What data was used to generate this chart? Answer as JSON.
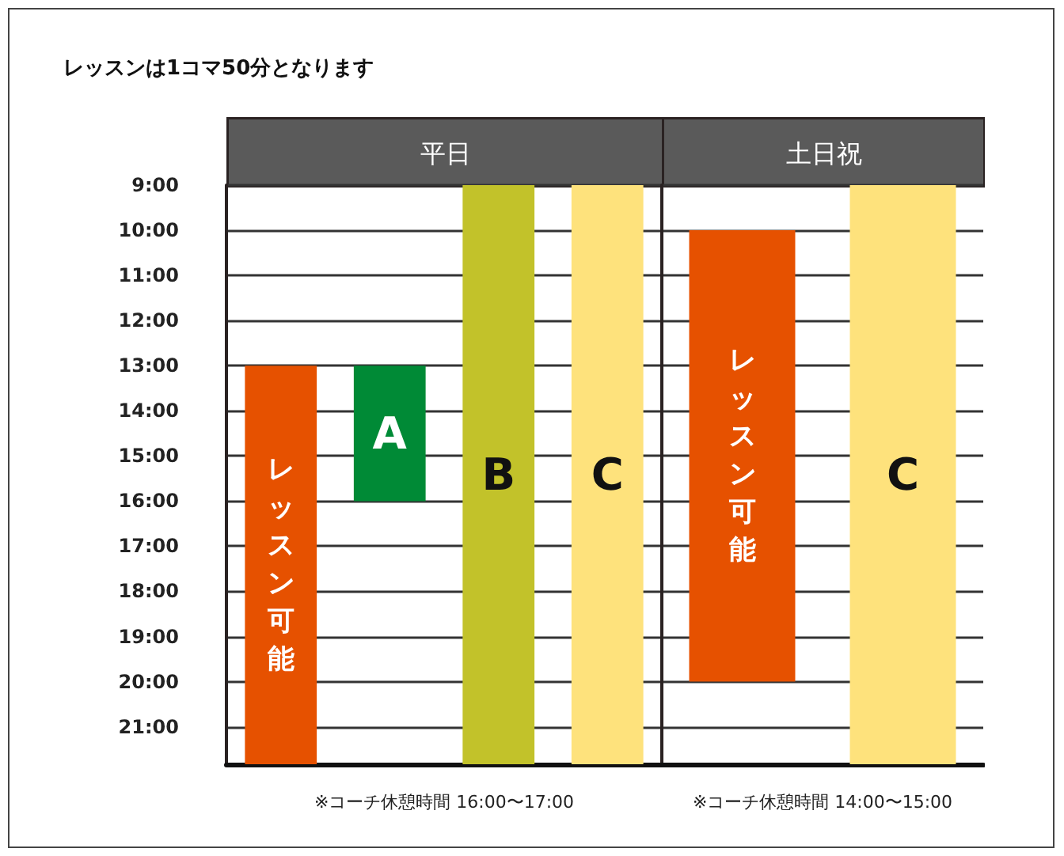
{
  "chart_data": [
    {
      "type": "bar",
      "title": "平日",
      "categories": [
        "レッスン可能",
        "A",
        "B",
        "C"
      ],
      "values": [
        8.83,
        3,
        12.83,
        12.83
      ],
      "base": [
        13,
        13,
        9,
        9
      ],
      "colors": [
        "#e65100",
        "#008a36",
        "#c2c22a",
        "#fee27c"
      ],
      "ylim": [
        21.83,
        9
      ],
      "yticks": [
        {
          "value": 9,
          "label": "9:00"
        },
        {
          "value": 10,
          "label": "10:00"
        },
        {
          "value": 11,
          "label": "11:00"
        },
        {
          "value": 12,
          "label": "12:00"
        },
        {
          "value": 13,
          "label": "13:00"
        },
        {
          "value": 14,
          "label": "14:00"
        },
        {
          "value": 15,
          "label": "15:00"
        },
        {
          "value": 16,
          "label": "16:00"
        },
        {
          "value": 17,
          "label": "17:00"
        },
        {
          "value": 18,
          "label": "18:00"
        },
        {
          "value": 19,
          "label": "19:00"
        },
        {
          "value": 20,
          "label": "20:00"
        },
        {
          "value": 21,
          "label": "21:00"
        }
      ],
      "grid": "y",
      "tick_labels": "y",
      "annotations": [
        "レッスンは1コマ50分となります",
        "※コーチ休憩時間 16:00〜17:00"
      ]
    },
    {
      "type": "bar",
      "title": "土日祝",
      "categories": [
        "レッスン可能",
        "C"
      ],
      "values": [
        10,
        12.83
      ],
      "base": [
        10,
        9
      ],
      "colors": [
        "#e65100",
        "#fee27c"
      ],
      "ylim": [
        21.83,
        9
      ],
      "yticks": [
        9,
        10,
        11,
        12,
        13,
        14,
        15,
        16,
        17,
        18,
        19,
        20,
        21
      ],
      "grid": "y",
      "tick_labels": false,
      "annotations": [
        "※コーチ休憩時間 14:00〜15:00"
      ]
    }
  ]
}
